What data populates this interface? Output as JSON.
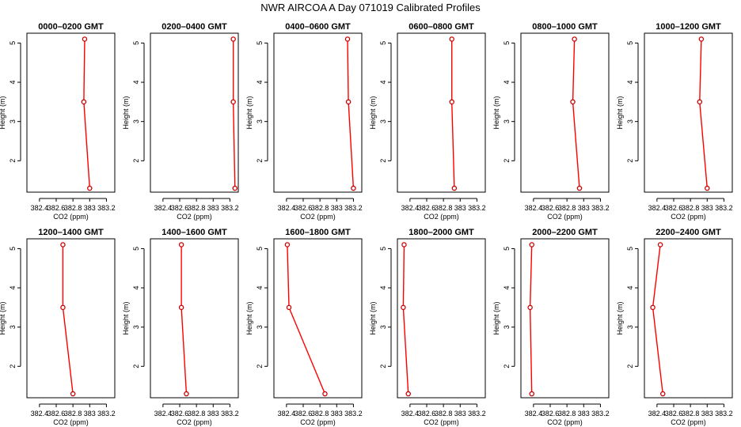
{
  "chart_data": {
    "type": "line",
    "title": "NWR AIRCOA A  Day 071019  Calibrated Profiles",
    "xlabel": "CO2 (ppm)",
    "ylabel": "Height (m)",
    "xlim": [
      382.25,
      383.3
    ],
    "ylim": [
      1.2,
      5.25
    ],
    "x_ticks": [
      382.4,
      382.6,
      382.8,
      383.0,
      383.2
    ],
    "x_tick_labels": [
      "382.4",
      "382.6",
      "382.8",
      "383",
      "383.2"
    ],
    "y_ticks": [
      2,
      3,
      4,
      5
    ],
    "y_tick_labels": [
      "2",
      "3",
      "4",
      "5"
    ],
    "line_color": "#ff0000",
    "marker_color": "#cc0000",
    "heights": [
      5.1,
      3.5,
      1.3
    ],
    "panels": [
      {
        "title": "0000–0200 GMT",
        "x": [
          382.94,
          382.93,
          383.0
        ]
      },
      {
        "title": "0200–0400 GMT",
        "x": [
          383.24,
          383.24,
          383.26
        ]
      },
      {
        "title": "0400–0600 GMT",
        "x": [
          383.13,
          383.14,
          383.2
        ]
      },
      {
        "title": "0600–0800 GMT",
        "x": [
          382.9,
          382.9,
          382.93
        ]
      },
      {
        "title": "0800–1000 GMT",
        "x": [
          382.89,
          382.87,
          382.95
        ]
      },
      {
        "title": "1000–1200 GMT",
        "x": [
          382.93,
          382.91,
          383.0
        ]
      },
      {
        "title": "1200–1400 GMT",
        "x": [
          382.68,
          382.68,
          382.8
        ]
      },
      {
        "title": "1400–1600 GMT",
        "x": [
          382.62,
          382.62,
          382.68
        ]
      },
      {
        "title": "1600–1800 GMT",
        "x": [
          382.41,
          382.43,
          382.86
        ]
      },
      {
        "title": "1800–2000 GMT",
        "x": [
          382.33,
          382.32,
          382.38
        ]
      },
      {
        "title": "2000–2200 GMT",
        "x": [
          382.38,
          382.36,
          382.38
        ]
      },
      {
        "title": "2200–2400 GMT",
        "x": [
          382.44,
          382.35,
          382.47
        ]
      }
    ]
  }
}
